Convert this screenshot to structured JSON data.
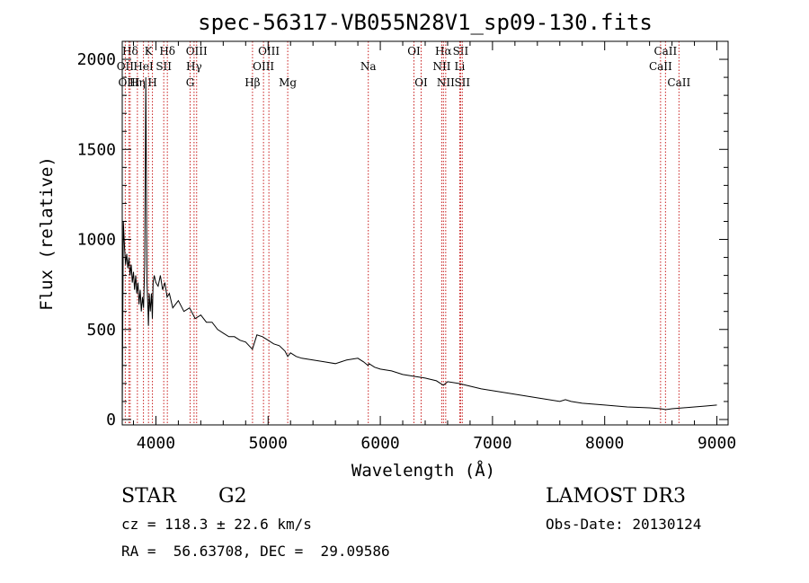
{
  "chart_data": {
    "type": "line",
    "title": "spec-56317-VB055N28V1_sp09-130.fits",
    "xlabel": "Wavelength (Å)",
    "ylabel": "Flux (relative)",
    "xlim": [
      3700,
      9100
    ],
    "ylim": [
      -30,
      2100
    ],
    "xticks": [
      4000,
      5000,
      6000,
      7000,
      8000,
      9000
    ],
    "xtick_labels": [
      "4000",
      "5000",
      "6000",
      "7000",
      "8000",
      "9000"
    ],
    "yticks": [
      0,
      500,
      1000,
      1500,
      2000
    ],
    "ytick_labels": [
      "0",
      "500",
      "1000",
      "1500",
      "2000"
    ],
    "series": [
      {
        "name": "spectrum",
        "x": [
          3700,
          3710,
          3720,
          3730,
          3740,
          3750,
          3760,
          3770,
          3780,
          3790,
          3800,
          3810,
          3820,
          3830,
          3840,
          3850,
          3860,
          3870,
          3880,
          3890,
          3900,
          3910,
          3920,
          3930,
          3933,
          3940,
          3950,
          3960,
          3968,
          3975,
          3985,
          4000,
          4020,
          4040,
          4060,
          4080,
          4100,
          4120,
          4150,
          4200,
          4250,
          4300,
          4350,
          4400,
          4450,
          4500,
          4550,
          4600,
          4650,
          4700,
          4750,
          4800,
          4860,
          4900,
          4950,
          5000,
          5050,
          5100,
          5150,
          5175,
          5200,
          5250,
          5300,
          5400,
          5500,
          5600,
          5700,
          5800,
          5850,
          5890,
          5900,
          5950,
          6000,
          6100,
          6200,
          6300,
          6400,
          6500,
          6563,
          6600,
          6700,
          6800,
          6900,
          7000,
          7200,
          7400,
          7600,
          7650,
          7700,
          7800,
          8000,
          8200,
          8400,
          8500,
          8542,
          8600,
          8700,
          8800,
          8900,
          9000
        ],
        "y": [
          30,
          1100,
          960,
          860,
          920,
          840,
          900,
          800,
          860,
          760,
          820,
          720,
          800,
          700,
          760,
          640,
          720,
          600,
          680,
          620,
          860,
          1900,
          760,
          600,
          520,
          700,
          600,
          700,
          560,
          760,
          800,
          760,
          740,
          800,
          720,
          760,
          680,
          700,
          620,
          660,
          600,
          620,
          560,
          580,
          540,
          540,
          500,
          480,
          460,
          460,
          440,
          430,
          390,
          470,
          460,
          440,
          420,
          410,
          380,
          350,
          370,
          350,
          340,
          330,
          320,
          310,
          330,
          340,
          320,
          300,
          310,
          290,
          280,
          270,
          250,
          240,
          230,
          215,
          190,
          210,
          200,
          185,
          170,
          160,
          140,
          120,
          100,
          110,
          100,
          90,
          80,
          70,
          65,
          60,
          55,
          60,
          65,
          70,
          75,
          80
        ]
      }
    ],
    "lines": [
      {
        "label": "Hδ",
        "wave": 3771,
        "row": 0
      },
      {
        "label": "OII",
        "wave": 3727,
        "row": 1
      },
      {
        "label": "OIII",
        "wave": 3760,
        "row": 2
      },
      {
        "label": "K",
        "wave": 3934,
        "row": 0
      },
      {
        "label": "HeI",
        "wave": 3889,
        "row": 1
      },
      {
        "label": "Hη",
        "wave": 3835,
        "row": 2
      },
      {
        "label": "Hδ",
        "wave": 4102,
        "row": 0
      },
      {
        "label": "SII",
        "wave": 4070,
        "row": 1
      },
      {
        "label": "H",
        "wave": 3969,
        "row": 2
      },
      {
        "label": "OIII",
        "wave": 4363,
        "row": 0
      },
      {
        "label": "Hγ",
        "wave": 4340,
        "row": 1
      },
      {
        "label": "G",
        "wave": 4305,
        "row": 2
      },
      {
        "label": "Hβ",
        "wave": 4861,
        "row": 2
      },
      {
        "label": "OIII",
        "wave": 5007,
        "row": 0
      },
      {
        "label": "OIII",
        "wave": 4959,
        "row": 1
      },
      {
        "label": "Mg",
        "wave": 5175,
        "row": 2
      },
      {
        "label": "Na",
        "wave": 5893,
        "row": 1
      },
      {
        "label": "OI",
        "wave": 6300,
        "row": 0
      },
      {
        "label": "OI",
        "wave": 6364,
        "row": 2
      },
      {
        "label": "Hα",
        "wave": 6563,
        "row": 0
      },
      {
        "label": "SII",
        "wave": 6716,
        "row": 0
      },
      {
        "label": "NII",
        "wave": 6548,
        "row": 1
      },
      {
        "label": "Li",
        "wave": 6708,
        "row": 1
      },
      {
        "label": "NII",
        "wave": 6583,
        "row": 2
      },
      {
        "label": "SII",
        "wave": 6731,
        "row": 2
      },
      {
        "label": "CaII",
        "wave": 8542,
        "row": 0
      },
      {
        "label": "CaII",
        "wave": 8498,
        "row": 1
      },
      {
        "label": "CaII",
        "wave": 8662,
        "row": 2
      }
    ]
  },
  "info": {
    "object_class": "STAR",
    "subclass": "G2",
    "survey": "LAMOST DR3",
    "cz": "cz = 118.3 ± 22.6 km/s",
    "obs_date": "Obs-Date: 20130124",
    "coords": "RA =  56.63708, DEC =  29.09586"
  }
}
